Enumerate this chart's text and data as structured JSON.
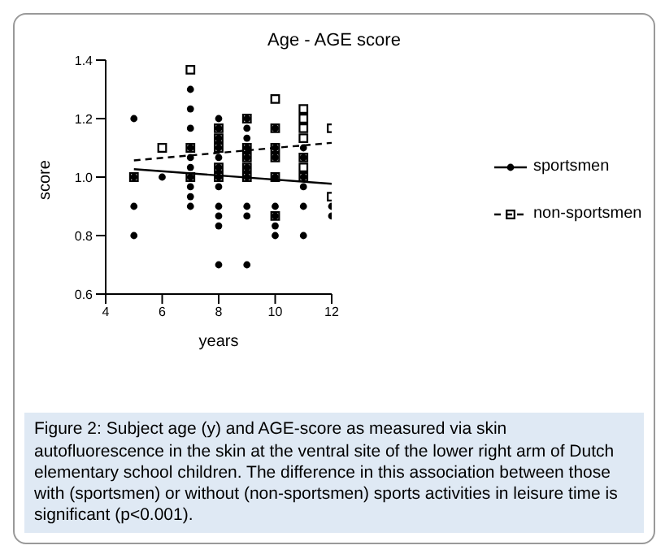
{
  "chart_data": {
    "type": "scatter",
    "title": "Age - AGE score",
    "xlabel": "years",
    "ylabel": "score",
    "xlim": [
      4,
      12
    ],
    "xticks": [
      4,
      6,
      8,
      10,
      12
    ],
    "ylim": [
      0.6,
      1.4
    ],
    "yticks": [
      0.6,
      0.8,
      {
        "value": 1,
        "label": "1.0"
      },
      1.2,
      1.4
    ],
    "grid": false,
    "legend": "right",
    "series": [
      {
        "name": "sportsmen",
        "type": "scatter",
        "marker": "circle",
        "color": "#000000",
        "x": [
          5,
          5,
          5,
          5,
          6,
          7,
          7,
          7,
          7,
          7,
          7,
          7,
          7,
          7,
          7,
          8,
          8,
          8,
          8,
          8,
          8,
          8,
          8,
          8,
          8,
          8,
          8,
          9,
          9,
          9,
          9,
          9,
          9,
          9,
          9,
          9,
          9,
          10,
          10,
          10,
          10,
          10,
          10,
          10,
          10,
          11,
          11,
          11,
          11,
          11,
          11,
          12,
          12
        ],
        "values": [
          1.2,
          1.0,
          0.9,
          0.8,
          1.0,
          1.3,
          1.233,
          1.167,
          1.1,
          1.067,
          1.033,
          1.0,
          0.967,
          0.933,
          0.9,
          1.2,
          1.167,
          1.133,
          1.1,
          1.067,
          1.033,
          1.0,
          0.967,
          0.9,
          0.867,
          0.833,
          0.7,
          1.2,
          1.167,
          1.133,
          1.1,
          1.067,
          1.033,
          1.0,
          0.9,
          0.867,
          0.7,
          1.167,
          1.1,
          1.067,
          1.0,
          0.9,
          0.867,
          0.833,
          0.8,
          1.1,
          1.067,
          1.0,
          0.967,
          0.9,
          0.8,
          0.9,
          0.867
        ]
      },
      {
        "name": "non-sportsmen",
        "type": "scatter",
        "marker": "square",
        "color": "#000000",
        "x": [
          5,
          6,
          7,
          7,
          7,
          8,
          8,
          8,
          8,
          8,
          9,
          9,
          9,
          9,
          9,
          10,
          10,
          10,
          10,
          10,
          10,
          11,
          11,
          11,
          11,
          11,
          11,
          11,
          12,
          12
        ],
        "values": [
          1.0,
          1.1,
          1.367,
          1.1,
          1.0,
          1.167,
          1.133,
          1.1,
          1.033,
          1.0,
          1.2,
          1.1,
          1.067,
          1.033,
          1.0,
          1.267,
          1.167,
          1.1,
          1.067,
          1.0,
          0.867,
          1.233,
          1.2,
          1.167,
          1.133,
          1.067,
          1.033,
          1.0,
          1.167,
          0.933
        ]
      },
      {
        "type": "line",
        "line_style": "solid",
        "marker": "none",
        "color": "#000000",
        "x": [
          5,
          12
        ],
        "values": [
          1.027,
          0.977
        ]
      },
      {
        "type": "line",
        "line_style": "dashed",
        "marker": "none",
        "color": "#000000",
        "x": [
          5,
          12
        ],
        "values": [
          1.057,
          1.117
        ]
      }
    ],
    "annotations": [
      "Figure 2: Subject age (y) and AGE-score as measured via skin autofluorescence in the skin at the ventral site of the lower right arm of Dutch elementary school children. The difference in this association between those with (sportsmen) or without (non-sportsmen) sports activities in leisure time is significant (p<0.001)."
    ]
  }
}
